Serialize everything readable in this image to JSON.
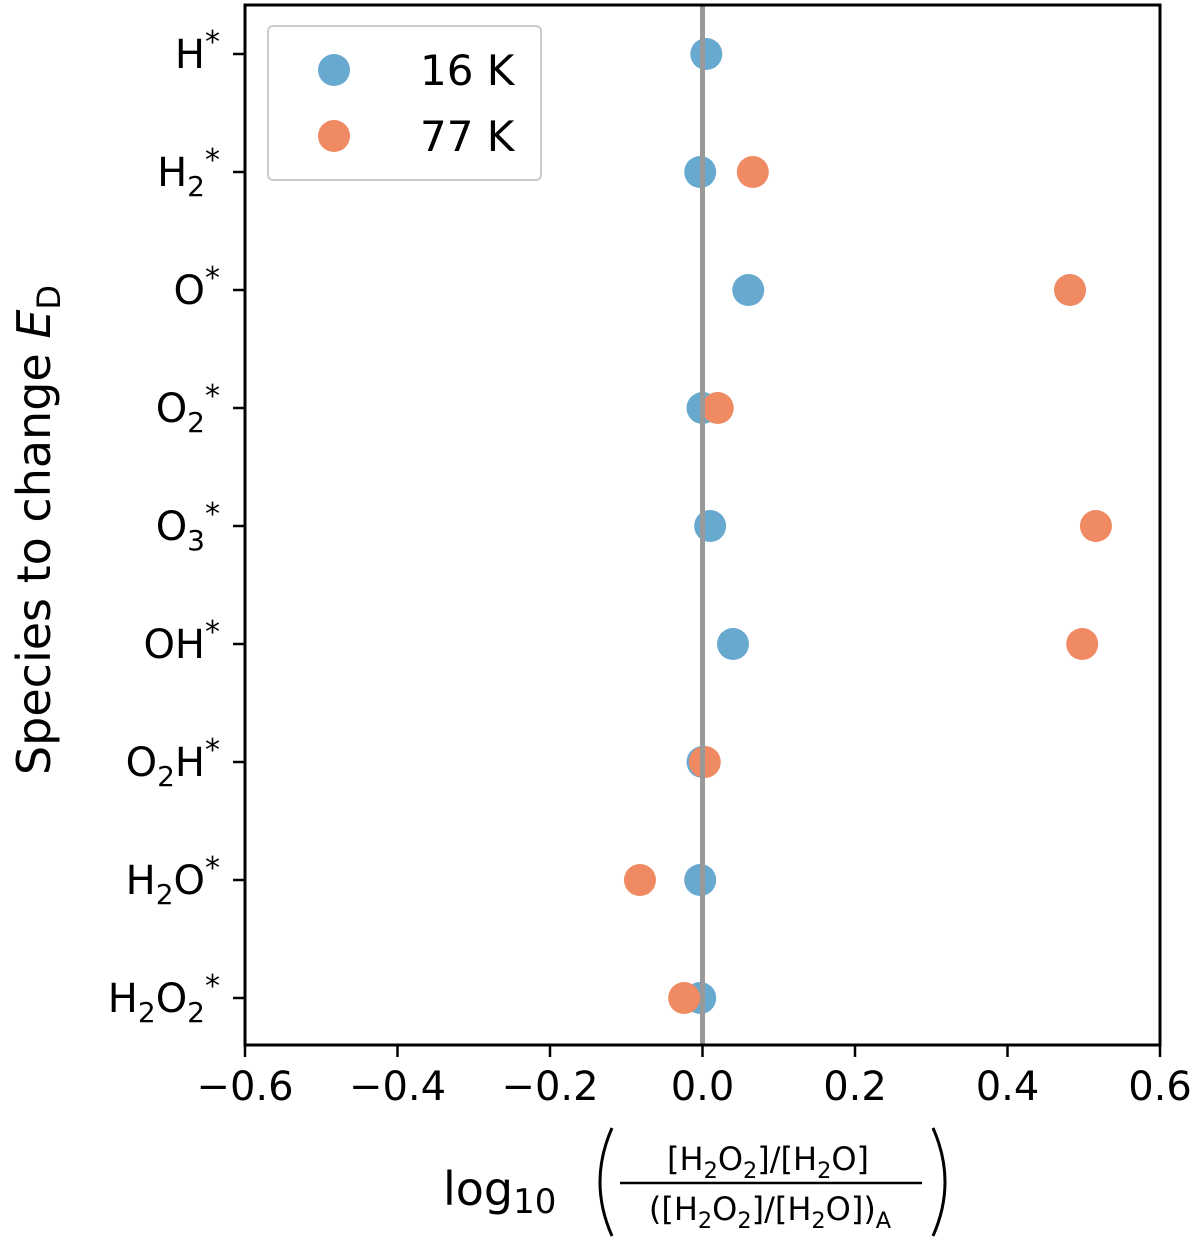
{
  "chart_data": {
    "type": "scatter",
    "orientation": "horizontal-categories",
    "xlim": [
      -0.6,
      0.6
    ],
    "x_ticks": [
      "−0.6",
      "−0.4",
      "−0.2",
      "0.0",
      "0.2",
      "0.4",
      "0.6"
    ],
    "x_tick_values": [
      -0.6,
      -0.4,
      -0.2,
      0.0,
      0.2,
      0.4,
      0.6
    ],
    "xlabel": {
      "prefix": "log",
      "prefix_sub": "10",
      "numerator": [
        {
          "t": "[H"
        },
        {
          "t": "2",
          "sub": true
        },
        {
          "t": "O"
        },
        {
          "t": "2",
          "sub": true
        },
        {
          "t": "]/[H"
        },
        {
          "t": "2",
          "sub": true
        },
        {
          "t": "O]"
        }
      ],
      "denominator": [
        {
          "t": "([H"
        },
        {
          "t": "2",
          "sub": true
        },
        {
          "t": "O"
        },
        {
          "t": "2",
          "sub": true
        },
        {
          "t": "]/[H"
        },
        {
          "t": "2",
          "sub": true
        },
        {
          "t": "O])"
        },
        {
          "t": "A",
          "sub": true
        }
      ]
    },
    "ylabel": {
      "text": "Species to change ",
      "var": "E",
      "var_sub": "D"
    },
    "categories": [
      [
        {
          "t": "H"
        },
        {
          "t": "*",
          "sup": true
        }
      ],
      [
        {
          "t": "H"
        },
        {
          "t": "2",
          "sub": true
        },
        {
          "t": "*",
          "sup": true
        }
      ],
      [
        {
          "t": "O"
        },
        {
          "t": "*",
          "sup": true
        }
      ],
      [
        {
          "t": "O"
        },
        {
          "t": "2",
          "sub": true
        },
        {
          "t": "*",
          "sup": true
        }
      ],
      [
        {
          "t": "O"
        },
        {
          "t": "3",
          "sub": true
        },
        {
          "t": "*",
          "sup": true
        }
      ],
      [
        {
          "t": "OH"
        },
        {
          "t": "*",
          "sup": true
        }
      ],
      [
        {
          "t": "O"
        },
        {
          "t": "2",
          "sub": true
        },
        {
          "t": "H"
        },
        {
          "t": "*",
          "sup": true
        }
      ],
      [
        {
          "t": "H"
        },
        {
          "t": "2",
          "sub": true
        },
        {
          "t": "O"
        },
        {
          "t": "*",
          "sup": true
        }
      ],
      [
        {
          "t": "H"
        },
        {
          "t": "2",
          "sub": true
        },
        {
          "t": "O"
        },
        {
          "t": "2",
          "sub": true
        },
        {
          "t": "*",
          "sup": true
        }
      ]
    ],
    "series": [
      {
        "name": "16 K",
        "color": "#67a9cf",
        "values": [
          0.005,
          -0.003,
          0.06,
          0.0,
          0.01,
          0.04,
          0.0,
          -0.003,
          -0.003
        ]
      },
      {
        "name": "77 K",
        "color": "#ef8a62",
        "values": [
          null,
          0.066,
          0.482,
          0.02,
          0.516,
          0.498,
          0.003,
          -0.082,
          -0.024
        ]
      }
    ],
    "reference_line": {
      "x": 0.0,
      "color": "#999999"
    },
    "legend": "top-left",
    "grid": false
  }
}
